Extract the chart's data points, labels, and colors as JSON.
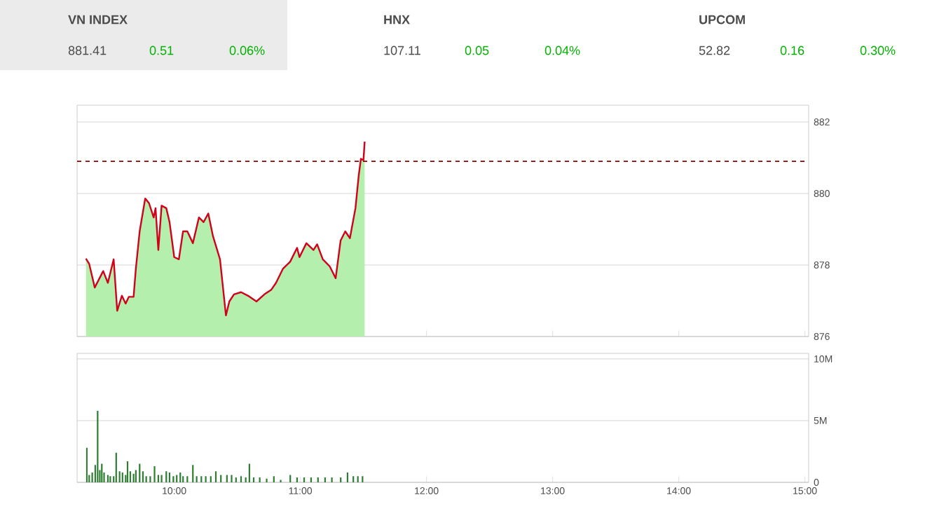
{
  "chart_data": [
    {
      "type": "other",
      "annotations": [
        "VN INDEX",
        "881.41",
        "0.51",
        "0.06%",
        "HNX",
        "107.11",
        "0.05",
        "0.04%",
        "UPCOM",
        "52.82",
        "0.16",
        "0.30%"
      ]
    },
    {
      "type": "area",
      "xlim": [
        9.23,
        15.03
      ],
      "ylim": [
        876,
        882.47
      ],
      "yticks": [
        876,
        878,
        880,
        882
      ],
      "xticks": [
        {
          "value": 10,
          "label": null
        },
        {
          "value": 11,
          "label": null
        },
        {
          "value": 12,
          "label": null
        },
        {
          "value": 13,
          "label": null
        },
        {
          "value": 14,
          "label": null
        },
        {
          "value": 15,
          "label": null
        }
      ],
      "tick_labels": "y",
      "grid": "y",
      "ref_lines": [
        {
          "axis": "y",
          "value": 880.9,
          "color": "#8b0000",
          "line_style": "dashed"
        }
      ],
      "series": [
        {
          "color": "#b5efae",
          "x": [
            9.3,
            9.326,
            9.37,
            9.437,
            9.474,
            9.52,
            9.548,
            9.585,
            9.615,
            9.64,
            9.678,
            9.696,
            9.726,
            9.77,
            9.8,
            9.837,
            9.852,
            9.874,
            9.9,
            9.937,
            9.963,
            10.0,
            10.037,
            10.07,
            10.104,
            10.148,
            10.196,
            10.233,
            10.27,
            10.307,
            10.363,
            10.41,
            10.437,
            10.474,
            10.53,
            10.585,
            10.652,
            10.715,
            10.77,
            10.807,
            10.863,
            10.919,
            10.974,
            10.993,
            11.048,
            11.104,
            11.133,
            11.178,
            11.233,
            11.28,
            11.319,
            11.356,
            11.393,
            11.437,
            11.463,
            11.48,
            11.5,
            11.51
          ],
          "values": [
            878.18,
            878.03,
            877.37,
            877.83,
            877.5,
            878.16,
            876.72,
            877.14,
            876.92,
            877.11,
            877.11,
            877.9,
            878.94,
            879.86,
            879.73,
            879.33,
            879.59,
            878.42,
            879.66,
            879.59,
            879.2,
            878.22,
            878.16,
            878.94,
            878.94,
            878.61,
            879.33,
            879.2,
            879.44,
            878.81,
            878.16,
            876.59,
            876.98,
            877.18,
            877.24,
            877.14,
            876.98,
            877.18,
            877.31,
            877.5,
            877.9,
            878.09,
            878.48,
            878.22,
            878.61,
            878.42,
            878.58,
            878.16,
            877.96,
            877.63,
            878.68,
            878.94,
            878.75,
            879.59,
            880.51,
            880.97,
            880.93,
            881.45
          ]
        },
        {
          "type": "line",
          "color": "#d0021b",
          "x": [
            9.3,
            9.326,
            9.37,
            9.437,
            9.474,
            9.52,
            9.548,
            9.585,
            9.615,
            9.64,
            9.678,
            9.696,
            9.726,
            9.77,
            9.8,
            9.837,
            9.852,
            9.874,
            9.9,
            9.937,
            9.963,
            10.0,
            10.037,
            10.07,
            10.104,
            10.148,
            10.196,
            10.233,
            10.27,
            10.307,
            10.363,
            10.41,
            10.437,
            10.474,
            10.53,
            10.585,
            10.652,
            10.715,
            10.77,
            10.807,
            10.863,
            10.919,
            10.974,
            10.993,
            11.048,
            11.104,
            11.133,
            11.178,
            11.233,
            11.28,
            11.319,
            11.356,
            11.393,
            11.437,
            11.463,
            11.48,
            11.5,
            11.51
          ],
          "values": [
            878.18,
            878.03,
            877.37,
            877.83,
            877.5,
            878.16,
            876.72,
            877.14,
            876.92,
            877.11,
            877.11,
            877.9,
            878.94,
            879.86,
            879.73,
            879.33,
            879.59,
            878.42,
            879.66,
            879.59,
            879.2,
            878.22,
            878.16,
            878.94,
            878.94,
            878.61,
            879.33,
            879.2,
            879.44,
            878.81,
            878.16,
            876.59,
            876.98,
            877.18,
            877.24,
            877.14,
            876.98,
            877.18,
            877.31,
            877.5,
            877.9,
            878.09,
            878.48,
            878.22,
            878.61,
            878.42,
            878.58,
            878.16,
            877.96,
            877.63,
            878.68,
            878.94,
            878.75,
            879.59,
            880.51,
            880.97,
            880.93,
            881.45
          ]
        }
      ]
    },
    {
      "type": "bar",
      "xlim": [
        9.23,
        15.03
      ],
      "ylim": [
        0,
        10.45
      ],
      "yticks": [
        {
          "value": 0,
          "label": "0"
        },
        {
          "value": 5,
          "label": "5M"
        },
        {
          "value": 10,
          "label": "10M"
        }
      ],
      "xticks": [
        {
          "value": 10,
          "label": "10:00"
        },
        {
          "value": 11,
          "label": "11:00"
        },
        {
          "value": 12,
          "label": "12:00"
        },
        {
          "value": 13,
          "label": "13:00"
        },
        {
          "value": 14,
          "label": "14:00"
        },
        {
          "value": 15,
          "label": "15:00"
        }
      ],
      "grid": "y",
      "series": [
        {
          "color": "#2e7d32",
          "x": [
            9.307,
            9.326,
            9.35,
            9.374,
            9.393,
            9.41,
            9.426,
            9.444,
            9.474,
            9.493,
            9.52,
            9.54,
            9.567,
            9.59,
            9.615,
            9.63,
            9.652,
            9.678,
            9.696,
            9.726,
            9.752,
            9.778,
            9.81,
            9.844,
            9.874,
            9.9,
            9.937,
            9.963,
            9.993,
            10.02,
            10.048,
            10.07,
            10.104,
            10.148,
            10.178,
            10.215,
            10.25,
            10.29,
            10.33,
            10.37,
            10.418,
            10.455,
            10.49,
            10.53,
            10.567,
            10.596,
            10.63,
            10.678,
            10.733,
            10.79,
            10.844,
            10.92,
            10.974,
            11.03,
            11.085,
            11.14,
            11.196,
            11.25,
            11.32,
            11.374,
            11.42,
            11.456,
            11.493
          ],
          "values": [
            2.8,
            0.6,
            0.8,
            1.4,
            5.8,
            1.0,
            1.5,
            0.8,
            0.6,
            0.5,
            0.5,
            2.4,
            0.9,
            0.8,
            0.6,
            1.7,
            0.9,
            0.7,
            1.0,
            1.5,
            0.9,
            0.5,
            0.5,
            1.3,
            0.6,
            0.6,
            0.9,
            0.8,
            0.5,
            0.6,
            0.8,
            0.5,
            0.5,
            1.4,
            0.5,
            0.5,
            0.5,
            0.5,
            0.9,
            0.6,
            0.6,
            0.6,
            0.4,
            0.5,
            0.4,
            1.5,
            0.4,
            0.4,
            0.3,
            0.5,
            0.2,
            0.6,
            0.4,
            0.4,
            0.4,
            0.4,
            0.4,
            0.4,
            0.4,
            0.8,
            0.5,
            0.5,
            0.5
          ]
        }
      ]
    }
  ]
}
